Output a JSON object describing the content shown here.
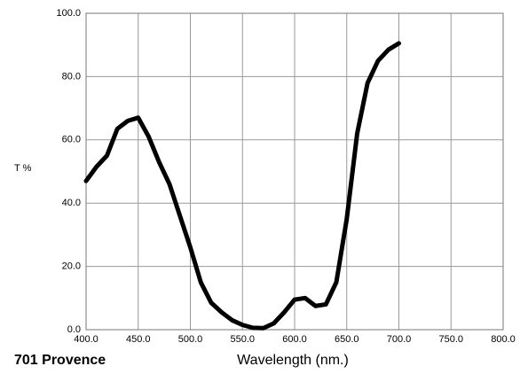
{
  "chart_data": {
    "type": "line",
    "title": "701 Provence",
    "xlabel": "Wavelength (nm.)",
    "ylabel": "T %",
    "x": [
      400,
      410,
      420,
      430,
      440,
      450,
      460,
      470,
      480,
      490,
      500,
      510,
      520,
      530,
      540,
      550,
      560,
      570,
      580,
      590,
      600,
      610,
      620,
      630,
      640,
      650,
      660,
      670,
      680,
      690,
      700
    ],
    "series": [
      {
        "name": "701 Provence",
        "color": "#000000",
        "values": [
          47,
          51.5,
          55,
          63.5,
          66,
          67,
          61,
          53,
          46,
          36,
          26,
          15,
          8.5,
          5.5,
          3,
          1.5,
          0.6,
          0.5,
          2,
          5.5,
          9.5,
          10,
          7.5,
          8,
          15,
          35,
          62,
          78,
          85,
          88.5,
          90.5
        ]
      }
    ],
    "xlim": [
      400,
      800
    ],
    "xticks": [
      {
        "value": 400,
        "label": "400.0"
      },
      {
        "value": 450,
        "label": "450.0"
      },
      {
        "value": 500,
        "label": "500.0"
      },
      {
        "value": 550,
        "label": "550.0"
      },
      {
        "value": 600,
        "label": "600.0"
      },
      {
        "value": 650,
        "label": "650.0"
      },
      {
        "value": 700,
        "label": "700.0"
      },
      {
        "value": 750,
        "label": "750.0"
      },
      {
        "value": 800,
        "label": "800.0"
      }
    ],
    "ylim": [
      0,
      100
    ],
    "yticks": [
      {
        "value": 0,
        "label": "0.0"
      },
      {
        "value": 20,
        "label": "20.0"
      },
      {
        "value": 40,
        "label": "40.0"
      },
      {
        "value": 60,
        "label": "60.0"
      },
      {
        "value": 80,
        "label": "80.0"
      },
      {
        "value": 100,
        "label": "100.0"
      }
    ],
    "grid": true
  }
}
